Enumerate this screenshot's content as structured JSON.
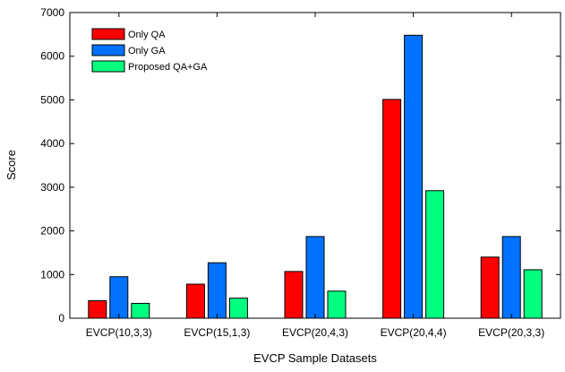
{
  "chart_data": {
    "type": "bar",
    "title": "",
    "xlabel": "EVCP Sample Datasets",
    "ylabel": "Score",
    "ylim": [
      0,
      7000
    ],
    "yticks": [
      0,
      1000,
      2000,
      3000,
      4000,
      5000,
      6000,
      7000
    ],
    "grid": false,
    "legend_position": "top-left",
    "categories": [
      "EVCP(10,3,3)",
      "EVCP(15,1,3)",
      "EVCP(20,4,3)",
      "EVCP(20,4,4)",
      "EVCP(20,3,3)"
    ],
    "series": [
      {
        "name": "Only QA",
        "color": "#ff0000",
        "values": [
          400,
          780,
          1070,
          5010,
          1400
        ]
      },
      {
        "name": "Only GA",
        "color": "#0072ff",
        "values": [
          950,
          1270,
          1870,
          6480,
          1870
        ]
      },
      {
        "name": "Proposed QA+GA",
        "color": "#00ff7f",
        "values": [
          340,
          460,
          620,
          2920,
          1110
        ]
      }
    ]
  }
}
